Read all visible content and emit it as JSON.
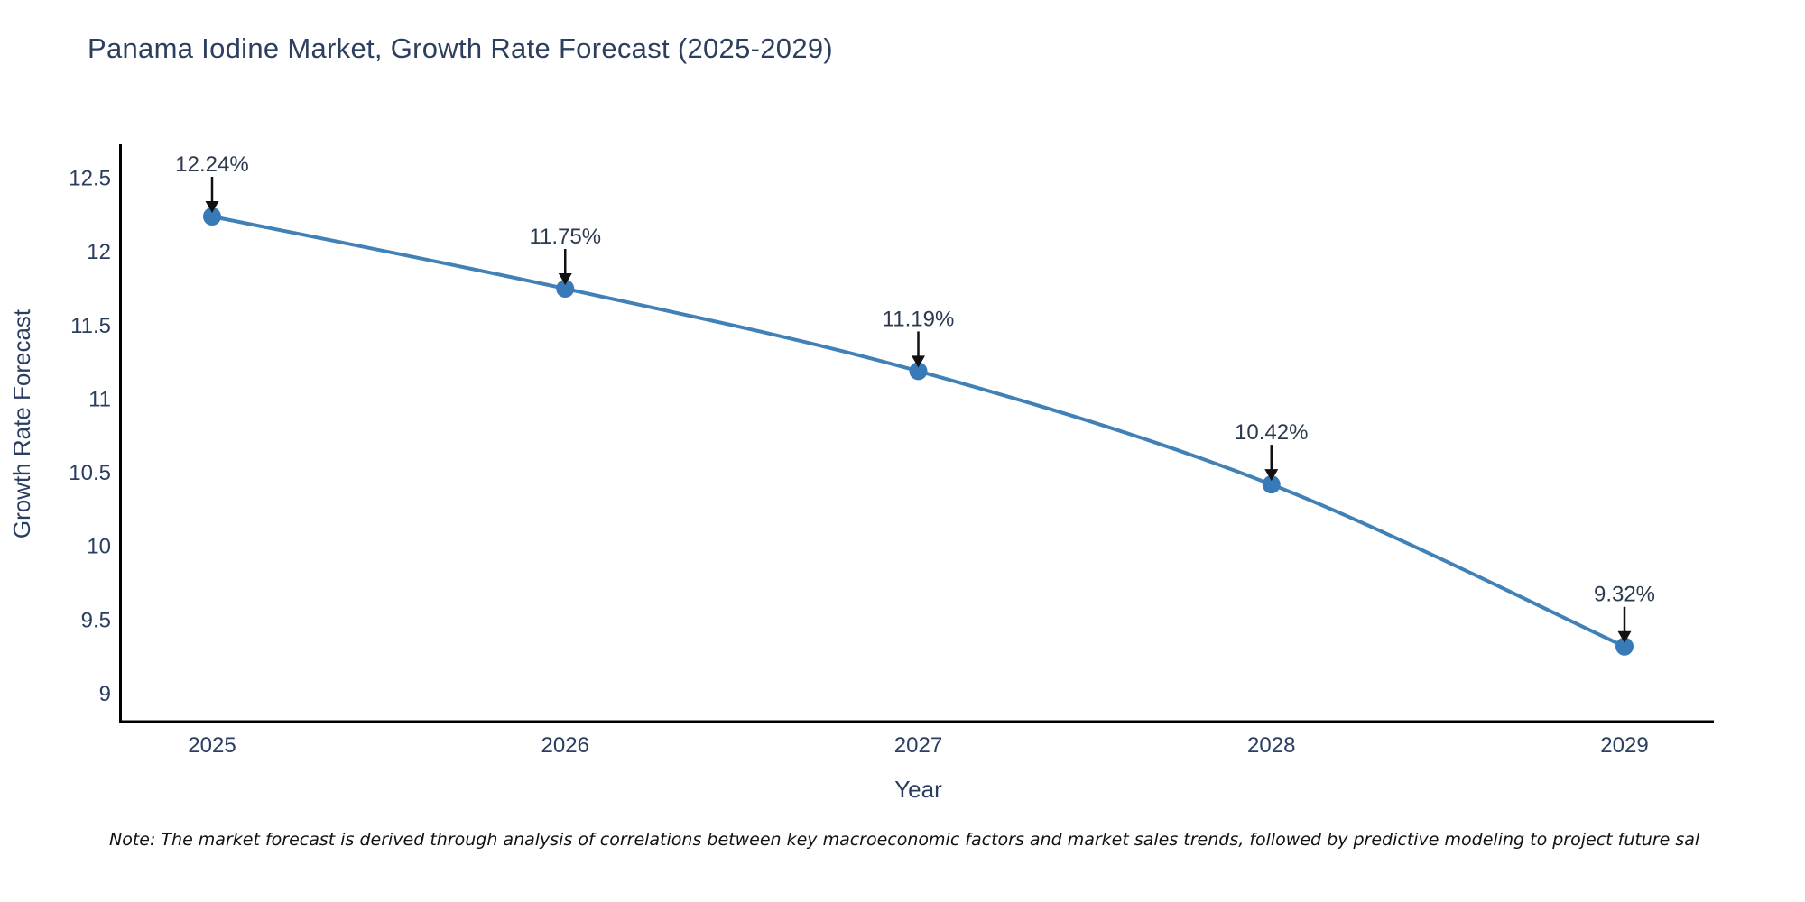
{
  "page": {
    "title": "Panama Iodine Market, Growth Rate Forecast (2025-2029)",
    "note": "Note: The market forecast is derived through analysis of correlations between key macroeconomic factors and market sales trends, followed by predictive modeling to project future sal"
  },
  "colors": {
    "title": "#2d3f5e",
    "axis_text": "#2a3f5f",
    "axis_line": "#000000",
    "line": "#4181b6",
    "marker": "#3879b8",
    "annotation_text": "#2b3a4e",
    "arrow": "#111111",
    "note_text": "#111111",
    "background": "#ffffff"
  },
  "chart_data": {
    "type": "line",
    "title": "Panama Iodine Market, Growth Rate Forecast (2025-2029)",
    "xlabel": "Year",
    "ylabel": "Growth Rate Forecast",
    "categories": [
      "2025",
      "2026",
      "2027",
      "2028",
      "2029"
    ],
    "values": [
      12.24,
      11.75,
      11.19,
      10.42,
      9.32
    ],
    "point_labels": [
      "12.24%",
      "11.75%",
      "11.19%",
      "10.42%",
      "9.32%"
    ],
    "y_ticks": [
      "12.5",
      "12",
      "11.5",
      "11",
      "10.5",
      "10",
      "9.5",
      "9"
    ],
    "ylim": [
      8.81,
      12.73
    ],
    "grid": false,
    "legend": "none",
    "marker_style": "circle",
    "annotation_style": "down-arrow"
  }
}
